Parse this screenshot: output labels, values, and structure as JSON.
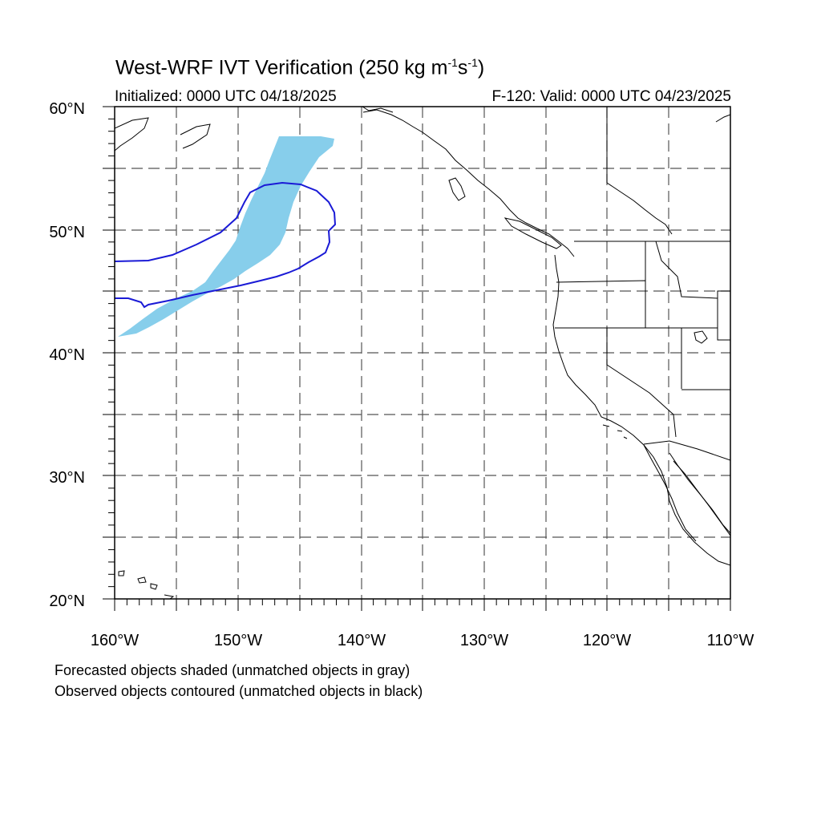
{
  "title": {
    "main": "West-WRF IVT Verification (250 kg m",
    "sup1": "-1",
    "mid": "s",
    "sup2": "-1",
    "end": ")"
  },
  "initialized": "Initialized: 0000 UTC 04/18/2025",
  "valid": "F-120: Valid: 0000 UTC 04/23/2025",
  "notes": {
    "forecast": "Forecasted objects shaded (unmatched objects in gray)",
    "observed": "Observed objects contoured (unmatched objects in black)"
  },
  "axes": {
    "lat_labels": [
      "60°N",
      "50°N",
      "40°N",
      "30°N",
      "20°N"
    ],
    "lon_labels": [
      "160°W",
      "150°W",
      "140°W",
      "130°W",
      "120°W",
      "110°W"
    ],
    "lon_range": [
      -160,
      -110
    ],
    "lat_range": [
      20,
      60
    ]
  },
  "colors": {
    "forecast_shade": "#87ceeb",
    "observed_contour": "#1a1ad6"
  },
  "map": {
    "region": "Northeast Pacific / Western North America",
    "grid": "dashed, every 5 degrees"
  }
}
